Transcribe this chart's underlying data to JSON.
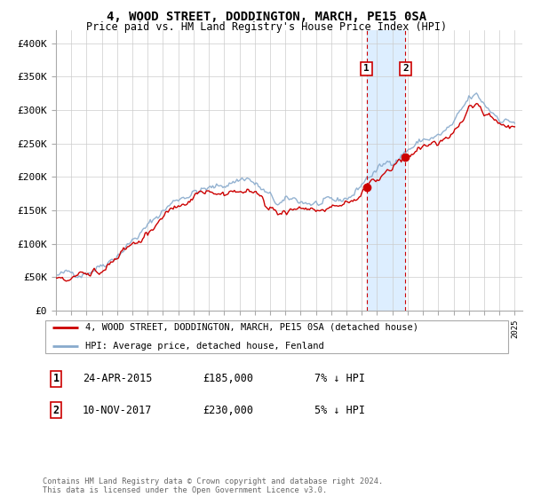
{
  "title": "4, WOOD STREET, DODDINGTON, MARCH, PE15 0SA",
  "subtitle": "Price paid vs. HM Land Registry's House Price Index (HPI)",
  "legend_label_red": "4, WOOD STREET, DODDINGTON, MARCH, PE15 0SA (detached house)",
  "legend_label_blue": "HPI: Average price, detached house, Fenland",
  "transaction1_label": "1",
  "transaction1_date": "24-APR-2015",
  "transaction1_price": "£185,000",
  "transaction1_hpi": "7% ↓ HPI",
  "transaction2_label": "2",
  "transaction2_date": "10-NOV-2017",
  "transaction2_price": "£230,000",
  "transaction2_hpi": "5% ↓ HPI",
  "footer": "Contains HM Land Registry data © Crown copyright and database right 2024.\nThis data is licensed under the Open Government Licence v3.0.",
  "ylim_min": 0,
  "ylim_max": 420000,
  "yticks": [
    0,
    50000,
    100000,
    150000,
    200000,
    250000,
    300000,
    350000,
    400000
  ],
  "ytick_labels": [
    "£0",
    "£50K",
    "£100K",
    "£150K",
    "£200K",
    "£250K",
    "£300K",
    "£350K",
    "£400K"
  ],
  "color_red": "#cc0000",
  "color_blue": "#88aacc",
  "color_highlight": "#ddeeff",
  "transaction1_x_year": 2015.31,
  "transaction2_x_year": 2017.86,
  "transaction1_y": 185000,
  "transaction2_y": 230000,
  "xlim_min": 1995,
  "xlim_max": 2025.5
}
